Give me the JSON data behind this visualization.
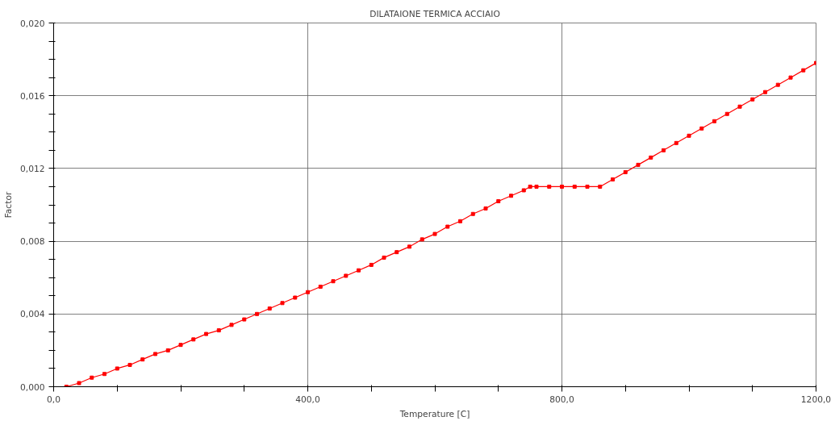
{
  "chart_data": {
    "type": "line",
    "title": "DILATAIONE TERMICA ACCIAIO",
    "xlabel": "Temperature [C]",
    "ylabel": "Factor",
    "x": [
      20,
      40,
      60,
      80,
      100,
      120,
      140,
      160,
      180,
      200,
      220,
      240,
      260,
      280,
      300,
      320,
      340,
      360,
      380,
      400,
      420,
      440,
      460,
      480,
      500,
      520,
      540,
      560,
      580,
      600,
      620,
      640,
      660,
      680,
      700,
      720,
      740,
      750,
      760,
      780,
      800,
      820,
      840,
      860,
      880,
      900,
      920,
      940,
      960,
      980,
      1000,
      1020,
      1040,
      1060,
      1080,
      1100,
      1120,
      1140,
      1160,
      1180,
      1200
    ],
    "series": [
      {
        "color": "#ff0000",
        "values": [
          0,
          0.0002,
          0.0005,
          0.0007,
          0.001,
          0.0012,
          0.0015,
          0.0018,
          0.002,
          0.0023,
          0.0026,
          0.0029,
          0.0031,
          0.0034,
          0.0037,
          0.004,
          0.0043,
          0.0046,
          0.0049,
          0.0052,
          0.0055,
          0.0058,
          0.0061,
          0.0064,
          0.0067,
          0.0071,
          0.0074,
          0.0077,
          0.0081,
          0.0084,
          0.0088,
          0.0091,
          0.0095,
          0.0098,
          0.0102,
          0.0105,
          0.0108,
          0.011,
          0.011,
          0.011,
          0.011,
          0.011,
          0.011,
          0.011,
          0.0114,
          0.0118,
          0.0122,
          0.0126,
          0.013,
          0.0134,
          0.0138,
          0.0142,
          0.0146,
          0.015,
          0.0154,
          0.0158,
          0.0162,
          0.0166,
          0.017,
          0.0174,
          0.0178
        ]
      }
    ],
    "xlim": [
      0,
      1200
    ],
    "ylim": [
      0,
      0.02
    ],
    "xticks": [
      {
        "value": 0,
        "label": "0,0"
      },
      {
        "value": 100,
        "label": null
      },
      {
        "value": 200,
        "label": null
      },
      {
        "value": 300,
        "label": null
      },
      {
        "value": 400,
        "label": "400,0"
      },
      {
        "value": 500,
        "label": null
      },
      {
        "value": 600,
        "label": null
      },
      {
        "value": 700,
        "label": null
      },
      {
        "value": 800,
        "label": "800,0"
      },
      {
        "value": 900,
        "label": null
      },
      {
        "value": 1000,
        "label": null
      },
      {
        "value": 1100,
        "label": null
      },
      {
        "value": 1200,
        "label": "1200,0"
      }
    ],
    "yticks": [
      {
        "value": 0,
        "label": "0,000"
      },
      {
        "value": 0.001,
        "label": null
      },
      {
        "value": 0.002,
        "label": null
      },
      {
        "value": 0.003,
        "label": null
      },
      {
        "value": 0.004,
        "label": "0,004"
      },
      {
        "value": 0.005,
        "label": null
      },
      {
        "value": 0.006,
        "label": null
      },
      {
        "value": 0.007,
        "label": null
      },
      {
        "value": 0.008,
        "label": "0,008"
      },
      {
        "value": 0.009,
        "label": null
      },
      {
        "value": 0.01,
        "label": null
      },
      {
        "value": 0.011,
        "label": null
      },
      {
        "value": 0.012,
        "label": "0,012"
      },
      {
        "value": 0.013,
        "label": null
      },
      {
        "value": 0.014,
        "label": null
      },
      {
        "value": 0.015,
        "label": null
      },
      {
        "value": 0.016,
        "label": "0,016"
      },
      {
        "value": 0.017,
        "label": null
      },
      {
        "value": 0.018,
        "label": null
      },
      {
        "value": 0.019,
        "label": null
      },
      {
        "value": 0.02,
        "label": "0,020"
      }
    ],
    "grid": true,
    "marker": "square",
    "line_style": "solid"
  }
}
